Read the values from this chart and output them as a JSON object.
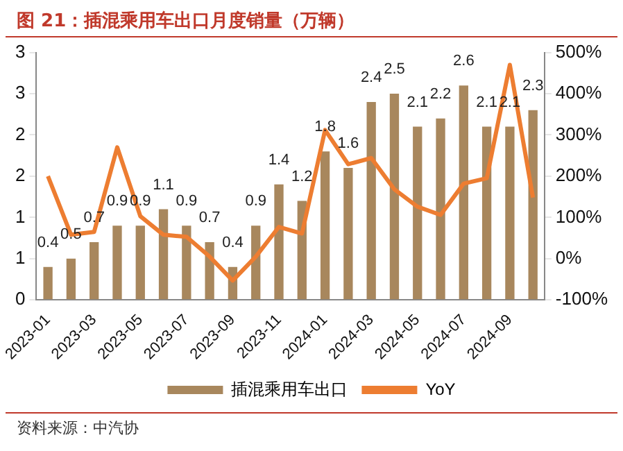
{
  "chart_data": {
    "type": "bar",
    "title": "图 21：插混乘用车出口月度销量（万辆）",
    "categories": [
      "2023-01",
      null,
      "2023-03",
      null,
      "2023-05",
      null,
      "2023-07",
      null,
      "2023-09",
      null,
      "2023-11",
      null,
      "2024-01",
      null,
      "2024-03",
      null,
      "2024-05",
      null,
      "2024-07",
      null,
      "2024-09",
      null
    ],
    "series": [
      {
        "name": "插混乘用车出口",
        "color": "#a8875d",
        "values": [
          0.4,
          0.5,
          0.7,
          0.9,
          0.9,
          1.1,
          0.9,
          0.7,
          0.4,
          0.9,
          1.4,
          1.2,
          1.8,
          1.6,
          2.4,
          2.5,
          2.1,
          2.2,
          2.6,
          2.1,
          2.1,
          2.3
        ],
        "value_labels": [
          "0.4",
          "0.5",
          "0.7",
          "0.9",
          "0.9",
          "1.1",
          "0.9",
          "0.7",
          "0.4",
          "0.9",
          "1.4",
          "1.2",
          "1.8",
          "1.6",
          "2.4",
          "2.5",
          "2.1",
          "2.2",
          "2.6",
          "2.1",
          "2.1",
          "2.3"
        ]
      },
      {
        "name": "YoY",
        "type": "line",
        "axis": "y2",
        "color": "#ed7d31",
        "values": [
          200,
          58,
          65,
          270,
          103,
          58,
          53,
          5,
          -53,
          5,
          77,
          61,
          312,
          229,
          244,
          168,
          126,
          106,
          182,
          195,
          470,
          148
        ]
      }
    ],
    "ylim": [
      0,
      3
    ],
    "yticks": [
      {
        "value": 0,
        "label": "0"
      },
      {
        "value": 0.5,
        "label": "1"
      },
      {
        "value": 1,
        "label": "1"
      },
      {
        "value": 1.5,
        "label": "2"
      },
      {
        "value": 2,
        "label": "2"
      },
      {
        "value": 2.5,
        "label": "3"
      },
      {
        "value": 3,
        "label": "3"
      }
    ],
    "y2lim": [
      -100,
      500
    ],
    "y2ticks": [
      {
        "value": -100,
        "label": "-100%"
      },
      {
        "value": 0,
        "label": "0%"
      },
      {
        "value": 100,
        "label": "100%"
      },
      {
        "value": 200,
        "label": "200%"
      },
      {
        "value": 300,
        "label": "300%"
      },
      {
        "value": 400,
        "label": "400%"
      },
      {
        "value": 500,
        "label": "500%"
      }
    ],
    "grid": false,
    "legend": "bottom",
    "marker": "none",
    "line_style": "solid",
    "annotations": [
      "资料来源：中汽协"
    ]
  }
}
